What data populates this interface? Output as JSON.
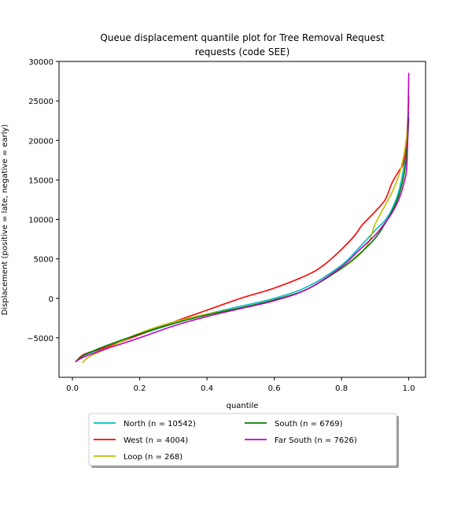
{
  "chart_data": {
    "type": "line",
    "title": "Queue displacement quantile plot for Tree Removal Request\nrequests (code SEE)",
    "title_lines": [
      "Queue displacement quantile plot for Tree Removal Request",
      "requests (code SEE)"
    ],
    "xlabel": "quantile",
    "ylabel": "Displacement (positive = late, negative = early)",
    "xlim": [
      -0.04,
      1.05
    ],
    "ylim": [
      -10000,
      30000
    ],
    "xticks": [
      0.0,
      0.2,
      0.4,
      0.6,
      0.8,
      1.0
    ],
    "xtick_labels": [
      "0.0",
      "0.2",
      "0.4",
      "0.6",
      "0.8",
      "1.0"
    ],
    "yticks": [
      -5000,
      0,
      5000,
      10000,
      15000,
      20000,
      25000,
      30000
    ],
    "ytick_labels": [
      "−5000",
      "0",
      "5000",
      "10000",
      "15000",
      "20000",
      "25000",
      "30000"
    ],
    "grid": false,
    "legend_placement": "below",
    "series": [
      {
        "name": "North (n = 10542)",
        "color": "#00bfbf",
        "x": [
          0.01,
          0.03,
          0.06,
          0.1,
          0.2,
          0.3,
          0.4,
          0.5,
          0.6,
          0.7,
          0.8,
          0.85,
          0.9,
          0.93,
          0.95,
          0.97,
          0.985,
          0.995,
          1.0
        ],
        "y": [
          -8000,
          -7300,
          -6800,
          -6200,
          -4600,
          -3200,
          -2000,
          -1000,
          0,
          1500,
          4200,
          6300,
          8600,
          9900,
          11300,
          13500,
          16500,
          20000,
          23500
        ]
      },
      {
        "name": "West (n = 4004)",
        "color": "#ff0000",
        "x": [
          0.01,
          0.03,
          0.06,
          0.1,
          0.2,
          0.3,
          0.4,
          0.5,
          0.6,
          0.7,
          0.75,
          0.8,
          0.84,
          0.86,
          0.9,
          0.93,
          0.95,
          0.97,
          0.985,
          0.995,
          1.0
        ],
        "y": [
          -8000,
          -7200,
          -6700,
          -6200,
          -4600,
          -3000,
          -1500,
          0,
          1300,
          3000,
          4300,
          6200,
          8000,
          9200,
          11000,
          12500,
          14600,
          16100,
          17300,
          21000,
          25500
        ]
      },
      {
        "name": "Loop (n = 268)",
        "color": "#bfbf00",
        "x": [
          0.03,
          0.05,
          0.08,
          0.12,
          0.2,
          0.3,
          0.4,
          0.5,
          0.6,
          0.7,
          0.8,
          0.85,
          0.88,
          0.9,
          0.93,
          0.95,
          0.97,
          0.985,
          1.0
        ],
        "y": [
          -8100,
          -7400,
          -6800,
          -6000,
          -4400,
          -3000,
          -2000,
          -1200,
          -200,
          1200,
          3800,
          5400,
          7000,
          9400,
          11800,
          13400,
          15500,
          18000,
          22500
        ]
      },
      {
        "name": "South (n = 6769)",
        "color": "#008000",
        "x": [
          0.01,
          0.03,
          0.06,
          0.1,
          0.2,
          0.3,
          0.4,
          0.5,
          0.6,
          0.7,
          0.8,
          0.85,
          0.9,
          0.93,
          0.95,
          0.97,
          0.985,
          0.995,
          1.0
        ],
        "y": [
          -8000,
          -7300,
          -6700,
          -6000,
          -4500,
          -3200,
          -2100,
          -1200,
          -200,
          1200,
          3800,
          5500,
          7600,
          9500,
          11000,
          13000,
          15500,
          19000,
          22800
        ]
      },
      {
        "name": "Far South (n = 7626)",
        "color": "#bf00bf",
        "x": [
          0.01,
          0.03,
          0.06,
          0.1,
          0.2,
          0.3,
          0.4,
          0.5,
          0.6,
          0.7,
          0.8,
          0.85,
          0.9,
          0.93,
          0.95,
          0.97,
          0.985,
          0.995,
          1.0
        ],
        "y": [
          -8000,
          -7500,
          -7000,
          -6400,
          -5000,
          -3500,
          -2300,
          -1300,
          -300,
          1200,
          4000,
          6000,
          8000,
          9600,
          10800,
          12500,
          14500,
          17500,
          28500
        ]
      }
    ]
  }
}
